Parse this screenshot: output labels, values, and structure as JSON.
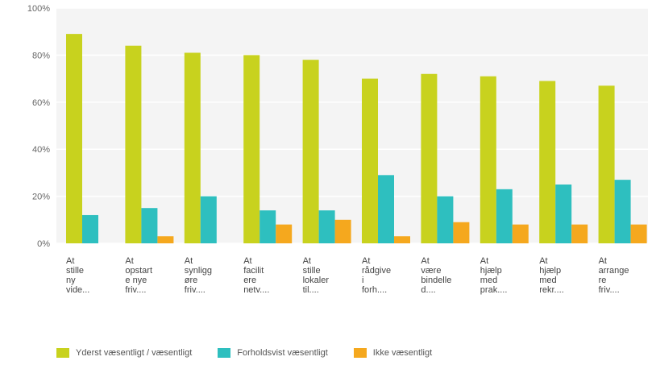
{
  "chart_data": {
    "type": "bar",
    "categories": [
      "At\nstille\nny\nvide...",
      "At\nopstart\ne nye\nfriv....",
      "At\nsynligg\nøre\nfriv....",
      "At\nfacilit\nere\nnetv....",
      "At\nstille\nlokaler\ntil....",
      "At\nrådgive\ni\nforh....",
      "At\nvære\nbindelle\nd....",
      "At\nhjælp\nmed\nprak....",
      "At\nhjælp\nmed\nrekr....",
      "At\narrange\nre\nfriv...."
    ],
    "series": [
      {
        "name": "Yderst væsentligt / væsentligt",
        "color": "#c8d21e",
        "values": [
          89,
          84,
          81,
          80,
          78,
          70,
          72,
          71,
          69,
          67
        ]
      },
      {
        "name": "Forholdsvist væsentligt",
        "color": "#2ebfbf",
        "values": [
          12,
          15,
          20,
          14,
          14,
          29,
          20,
          23,
          25,
          27
        ]
      },
      {
        "name": "Ikke væsentligt",
        "color": "#f5a81e",
        "values": [
          0,
          3,
          0,
          8,
          10,
          3,
          9,
          8,
          8,
          8
        ]
      }
    ],
    "yticks": [
      "100%",
      "80%",
      "60%",
      "40%",
      "20%",
      "0%"
    ],
    "ylim": [
      0,
      100
    ],
    "grid": true,
    "legend_position": "bottom-left"
  }
}
